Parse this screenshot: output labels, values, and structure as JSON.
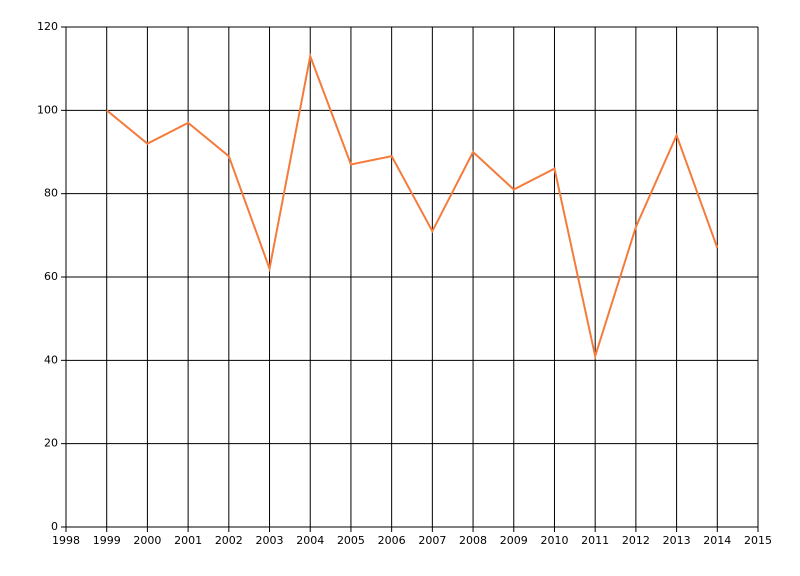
{
  "chart_data": {
    "type": "line",
    "x": [
      1999,
      2000,
      2001,
      2002,
      2003,
      2004,
      2005,
      2006,
      2007,
      2008,
      2009,
      2010,
      2011,
      2012,
      2013,
      2014
    ],
    "series": [
      {
        "color": "#f47b3c",
        "values": [
          100,
          92,
          97,
          89,
          62,
          113,
          87,
          89,
          71,
          90,
          81,
          86,
          41,
          72,
          94,
          67
        ]
      }
    ],
    "xlim": [
      1998,
      2015
    ],
    "xticks": [
      1998,
      1999,
      2000,
      2001,
      2002,
      2003,
      2004,
      2005,
      2006,
      2007,
      2008,
      2009,
      2010,
      2011,
      2012,
      2013,
      2014,
      2015
    ],
    "ylim": [
      0,
      120
    ],
    "yticks": [
      0,
      20,
      40,
      60,
      80,
      100,
      120
    ],
    "grid": true
  }
}
